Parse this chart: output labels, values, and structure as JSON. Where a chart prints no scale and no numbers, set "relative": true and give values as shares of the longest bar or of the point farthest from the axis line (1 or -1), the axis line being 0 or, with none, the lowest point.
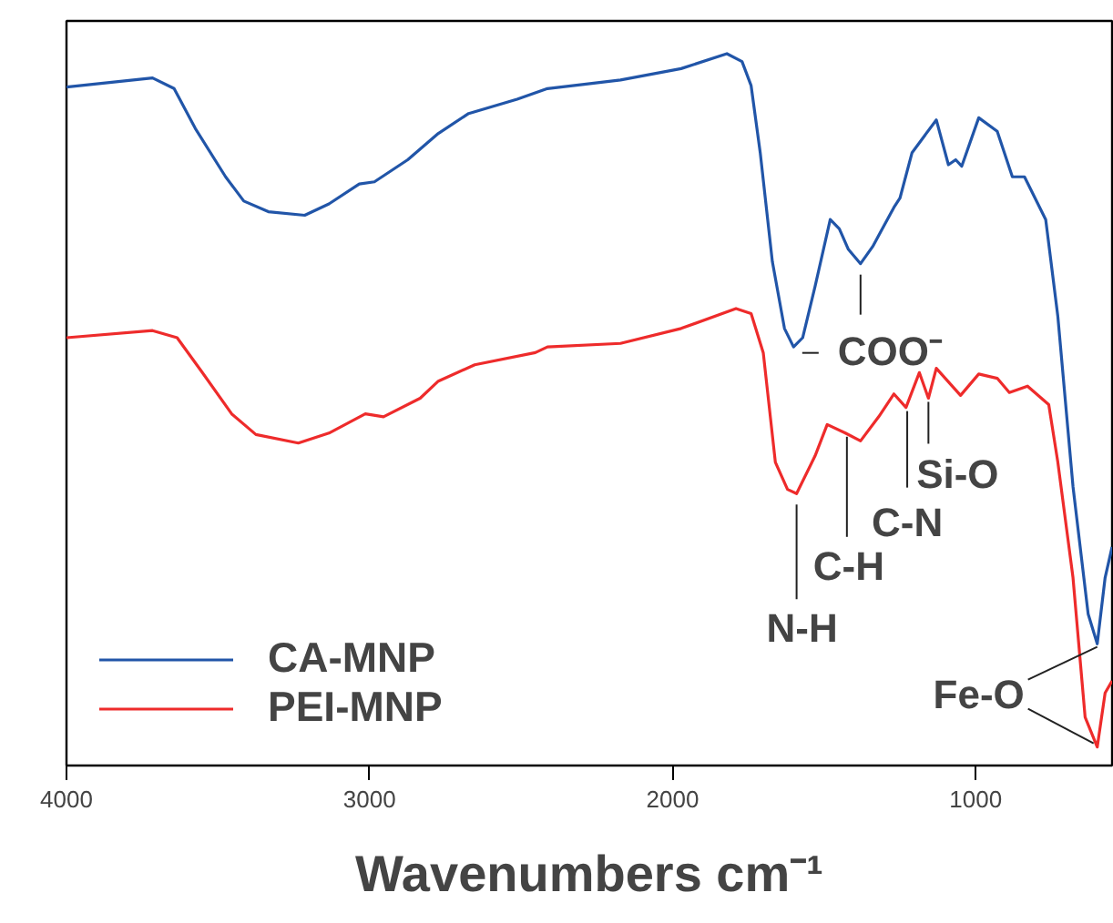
{
  "chart_data": {
    "type": "line",
    "xlabel": "Wavenumbers cm⁻¹",
    "relative": true,
    "xlim": [
      4000,
      550
    ],
    "xticks": [
      4000,
      3000,
      2000,
      1000
    ],
    "grid": false,
    "legend": "bottom left",
    "marker": "none",
    "line_style": "solid",
    "series": [
      {
        "name": "CA-MNP",
        "color": "#2155a8",
        "x": [
          4000,
          3716,
          3645,
          3575,
          3475,
          3415,
          3334,
          3214,
          3134,
          3034,
          2984,
          2874,
          2773,
          2673,
          2513,
          2413,
          2292,
          2172,
          1972,
          1821,
          1771,
          1741,
          1711,
          1671,
          1631,
          1601,
          1571,
          1530,
          1480,
          1450,
          1420,
          1380,
          1340,
          1270,
          1250,
          1210,
          1130,
          1090,
          1066,
          1046,
          990,
          929,
          879,
          839,
          769,
          729,
          679,
          629,
          599,
          573,
          550
        ],
        "values": [
          0.953,
          0.966,
          0.951,
          0.895,
          0.827,
          0.793,
          0.778,
          0.773,
          0.789,
          0.817,
          0.82,
          0.851,
          0.888,
          0.916,
          0.936,
          0.951,
          0.957,
          0.963,
          0.979,
          1.0,
          0.989,
          0.955,
          0.861,
          0.708,
          0.614,
          0.588,
          0.601,
          0.673,
          0.767,
          0.754,
          0.725,
          0.705,
          0.729,
          0.784,
          0.797,
          0.861,
          0.907,
          0.844,
          0.851,
          0.842,
          0.91,
          0.891,
          0.827,
          0.827,
          0.767,
          0.631,
          0.392,
          0.213,
          0.171,
          0.264,
          0.307
        ]
      },
      {
        "name": "PEI-MNP",
        "color": "#ee2b2b",
        "x": [
          4000,
          3716,
          3635,
          3555,
          3455,
          3375,
          3235,
          3134,
          3014,
          2954,
          2833,
          2773,
          2653,
          2453,
          2413,
          2172,
          1972,
          1791,
          1741,
          1701,
          1661,
          1621,
          1591,
          1530,
          1490,
          1430,
          1380,
          1320,
          1270,
          1230,
          1186,
          1156,
          1130,
          1050,
          990,
          929,
          889,
          829,
          759,
          729,
          679,
          639,
          599,
          573,
          550
        ],
        "values": [
          0.601,
          0.611,
          0.601,
          0.554,
          0.494,
          0.465,
          0.453,
          0.467,
          0.494,
          0.49,
          0.516,
          0.54,
          0.563,
          0.58,
          0.588,
          0.593,
          0.614,
          0.642,
          0.635,
          0.58,
          0.426,
          0.388,
          0.382,
          0.435,
          0.479,
          0.467,
          0.456,
          0.49,
          0.522,
          0.503,
          0.552,
          0.516,
          0.558,
          0.52,
          0.55,
          0.544,
          0.524,
          0.533,
          0.507,
          0.426,
          0.264,
          0.068,
          0.026,
          0.102,
          0.119
        ]
      }
    ],
    "annotations": [
      {
        "text": "COO⁻",
        "x": 1380,
        "y": 0.705
      },
      {
        "text": "N-H",
        "x": 1591,
        "y": 0.382
      },
      {
        "text": "C-H",
        "x": 1425,
        "y": 0.467
      },
      {
        "text": "C-N",
        "x": 1226,
        "y": 0.503
      },
      {
        "text": "Si-O",
        "x": 1156,
        "y": 0.516
      },
      {
        "text": "Fe-O",
        "x": 599,
        "y": 0.026
      }
    ]
  }
}
